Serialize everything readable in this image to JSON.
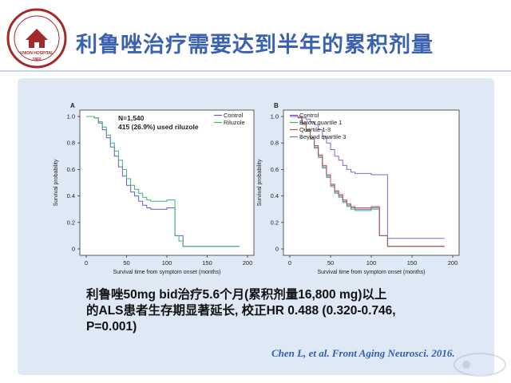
{
  "slide": {
    "title": "利鲁唑治疗需要达到半年的累积剂量",
    "logo_text": "UNION HOSPITAL",
    "logo_year": "1860",
    "conclusion_line1": "利鲁唑50mg bid治疗5.6个月(累积剂量16,800 mg)以上",
    "conclusion_line2": "的ALS患者生存期显著延长, 校正HR 0.488 (0.320-0.746,",
    "conclusion_line3": "P=0.001)",
    "citation": "Chen L, et al. Front Aging Neurosci. 2016."
  },
  "colors": {
    "title": "#3b62b0",
    "panel": "#dfe8f5",
    "control": "#6a5acd",
    "riluzole": "#3cb371",
    "below_q1": "#3cb371",
    "quartile_1_3": "#c0504d",
    "beyond_q3": "#8a63c9"
  },
  "chart_data": [
    {
      "type": "line",
      "panel_label": "A",
      "xlabel": "Survival time from symptom onset (months)",
      "ylabel": "Survival probability",
      "xlim": [
        0,
        200
      ],
      "ylim": [
        0,
        1.0
      ],
      "xticks": [
        0,
        50,
        100,
        150,
        200
      ],
      "yticks": [
        0,
        0.2,
        0.4,
        0.6,
        0.8,
        1.0
      ],
      "ytick_labels": [
        "0",
        "0.2",
        "0.4",
        "0.6",
        "0.8",
        "1.0"
      ],
      "annotation_line1": "N=1,540",
      "annotation_line2": "415 (26.9%) used riluzole",
      "legend_position": "top-right",
      "series": [
        {
          "name": "Control",
          "color_key": "control",
          "x": [
            0,
            10,
            15,
            20,
            25,
            30,
            35,
            40,
            45,
            50,
            55,
            60,
            65,
            70,
            75,
            80,
            85,
            90,
            100,
            110,
            120,
            190
          ],
          "y": [
            1.0,
            0.99,
            0.95,
            0.9,
            0.84,
            0.77,
            0.7,
            0.62,
            0.55,
            0.48,
            0.43,
            0.4,
            0.36,
            0.33,
            0.31,
            0.3,
            0.3,
            0.3,
            0.31,
            0.1,
            0.02,
            0.02
          ]
        },
        {
          "name": "Riluzole",
          "color_key": "riluzole",
          "x": [
            0,
            10,
            15,
            20,
            25,
            30,
            35,
            40,
            45,
            50,
            55,
            60,
            65,
            70,
            75,
            80,
            85,
            90,
            100,
            110,
            115,
            120,
            190
          ],
          "y": [
            1.0,
            0.99,
            0.96,
            0.92,
            0.86,
            0.8,
            0.74,
            0.67,
            0.6,
            0.53,
            0.48,
            0.45,
            0.42,
            0.39,
            0.37,
            0.36,
            0.36,
            0.36,
            0.37,
            0.1,
            0.06,
            0.02,
            0.02
          ]
        }
      ]
    },
    {
      "type": "line",
      "panel_label": "B",
      "xlabel": "Survival time from symptom onset (months)",
      "ylabel": "Survival probability",
      "xlim": [
        0,
        200
      ],
      "ylim": [
        0,
        1.0
      ],
      "xticks": [
        0,
        50,
        100,
        150,
        200
      ],
      "yticks": [
        0,
        0.2,
        0.4,
        0.6,
        0.8,
        1.0
      ],
      "ytick_labels": [
        "0",
        "0.2",
        "0.4",
        "0.6",
        "0.8",
        "1.0"
      ],
      "legend_position": "top-left",
      "series": [
        {
          "name": "Control",
          "color_key": "control",
          "x": [
            0,
            10,
            15,
            20,
            25,
            30,
            35,
            40,
            45,
            50,
            55,
            60,
            65,
            70,
            75,
            80,
            85,
            90,
            100,
            110,
            120,
            190
          ],
          "y": [
            1.0,
            0.99,
            0.95,
            0.9,
            0.84,
            0.77,
            0.7,
            0.62,
            0.55,
            0.48,
            0.43,
            0.4,
            0.36,
            0.33,
            0.31,
            0.3,
            0.3,
            0.3,
            0.31,
            0.1,
            0.02,
            0.02
          ]
        },
        {
          "name": "Below quartile 1",
          "color_key": "below_q1",
          "x": [
            0,
            10,
            15,
            20,
            25,
            30,
            35,
            40,
            45,
            50,
            55,
            60,
            65,
            70,
            75,
            80,
            85,
            90,
            100,
            110,
            120,
            190
          ],
          "y": [
            1.0,
            0.99,
            0.94,
            0.89,
            0.83,
            0.76,
            0.69,
            0.61,
            0.54,
            0.47,
            0.42,
            0.39,
            0.35,
            0.32,
            0.3,
            0.29,
            0.29,
            0.29,
            0.3,
            0.1,
            0.02,
            0.02
          ]
        },
        {
          "name": "Quartile 1-3",
          "color_key": "quartile_1_3",
          "x": [
            0,
            10,
            15,
            20,
            25,
            30,
            35,
            40,
            45,
            50,
            55,
            60,
            65,
            70,
            75,
            80,
            85,
            90,
            100,
            110,
            120,
            190
          ],
          "y": [
            1.0,
            0.99,
            0.95,
            0.9,
            0.84,
            0.78,
            0.71,
            0.63,
            0.56,
            0.49,
            0.44,
            0.41,
            0.37,
            0.34,
            0.32,
            0.31,
            0.31,
            0.31,
            0.32,
            0.1,
            0.02,
            0.02
          ]
        },
        {
          "name": "Beyond quartile 3",
          "color_key": "beyond_q3",
          "x": [
            0,
            10,
            15,
            20,
            25,
            30,
            35,
            40,
            45,
            50,
            55,
            60,
            65,
            70,
            75,
            80,
            85,
            90,
            95,
            100,
            110,
            120,
            130,
            190
          ],
          "y": [
            1.0,
            1.0,
            0.99,
            0.98,
            0.96,
            0.94,
            0.9,
            0.85,
            0.8,
            0.75,
            0.7,
            0.67,
            0.63,
            0.6,
            0.58,
            0.57,
            0.57,
            0.57,
            0.57,
            0.56,
            0.56,
            0.08,
            0.08,
            0.08
          ]
        }
      ]
    }
  ]
}
